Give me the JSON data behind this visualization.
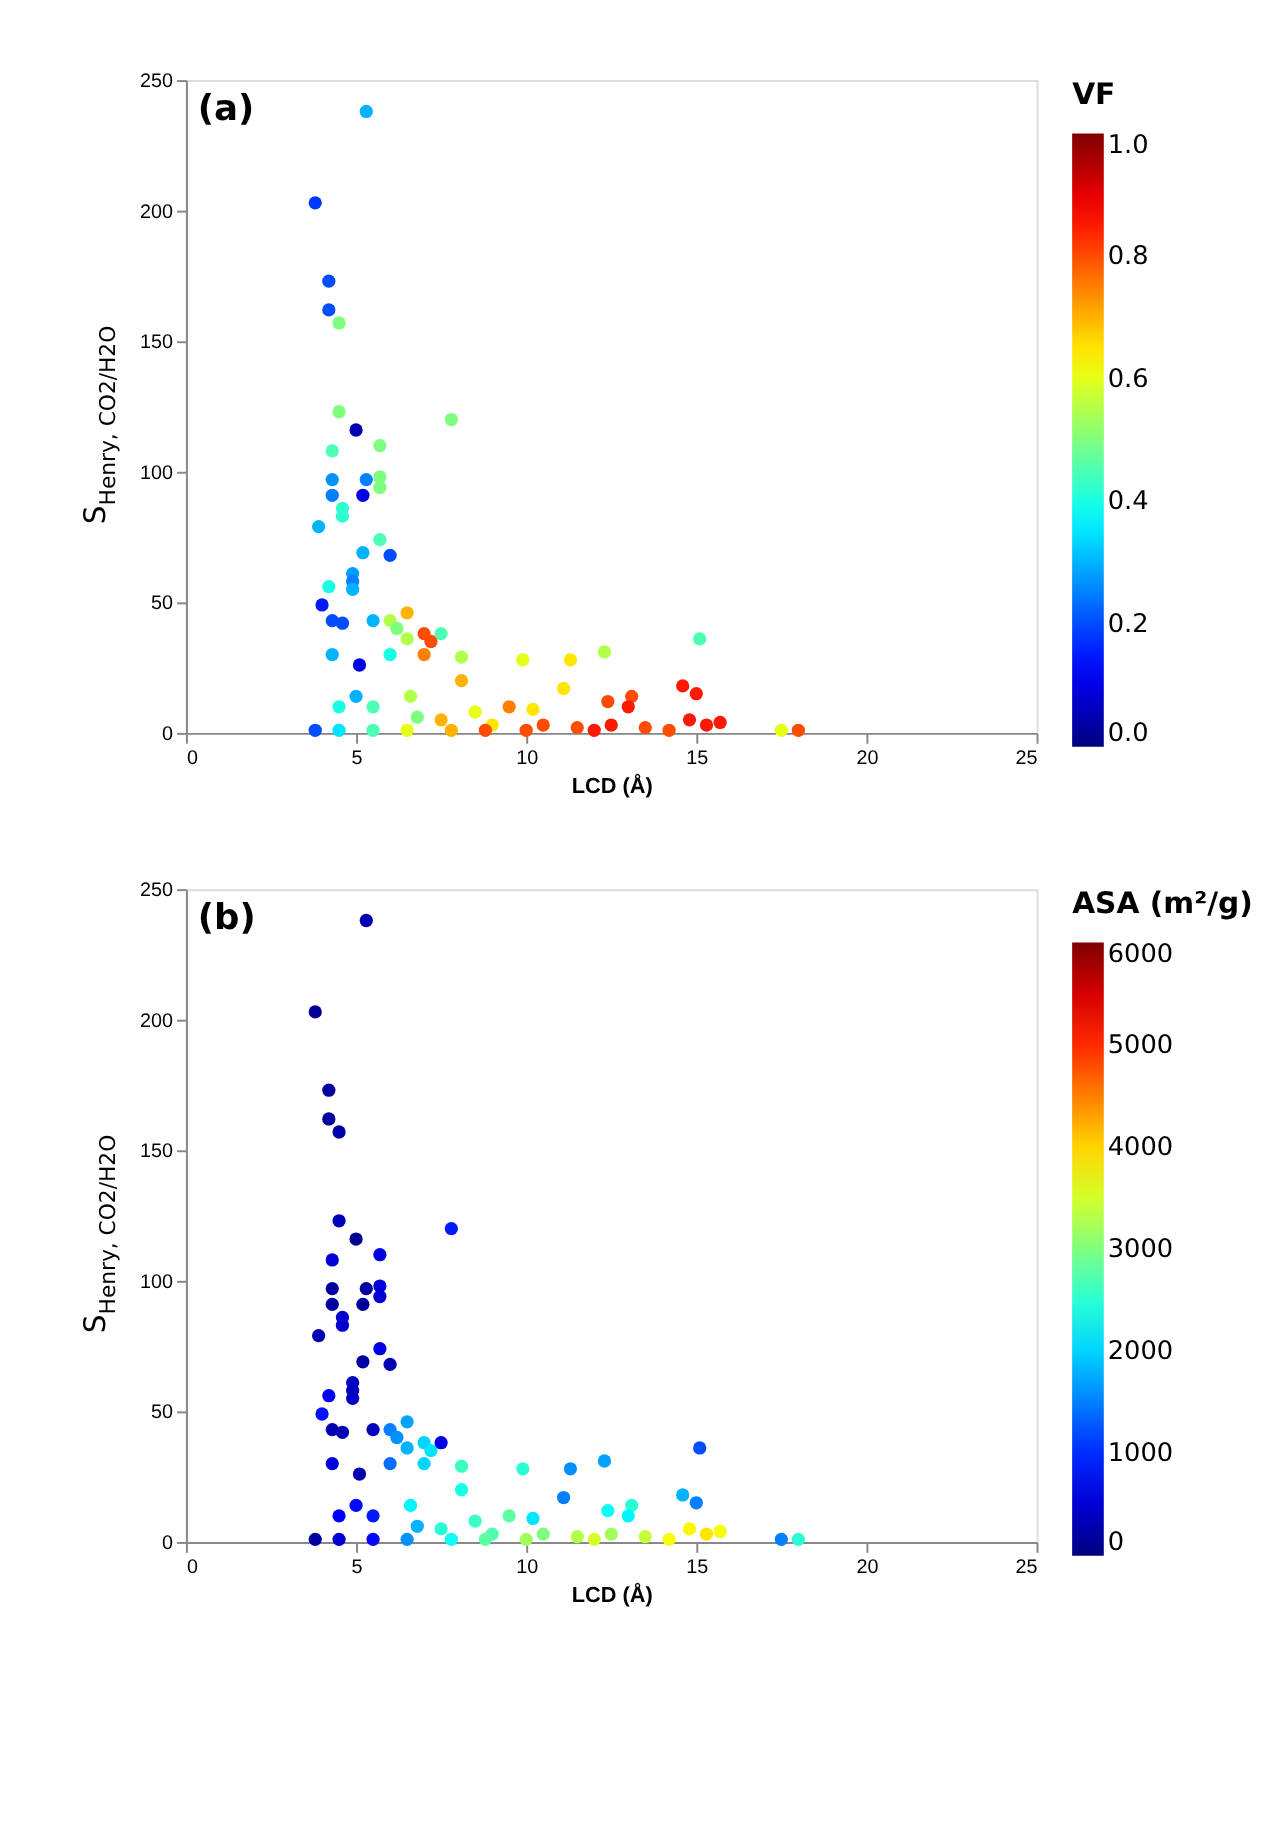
{
  "chart_data": [
    {
      "type": "scatter",
      "xlabel": "LCD (Å)",
      "ylabel": "S$_{Henry, CO2/H2O}$",
      "clabel": "VF",
      "annotations": [
        "(a)"
      ],
      "xlim": [
        0,
        25
      ],
      "xticks": [
        0,
        5,
        10,
        15,
        20,
        25
      ],
      "ylim": [
        0,
        250
      ],
      "yticks": [
        0,
        50,
        100,
        150,
        200,
        250
      ],
      "clim": [
        0,
        1
      ],
      "cticks": [
        {
          "value": 0,
          "label": "0.0"
        },
        {
          "value": 0.2,
          "label": "0.2"
        },
        {
          "value": 0.4,
          "label": "0.4"
        },
        {
          "value": 0.6,
          "label": "0.6"
        },
        {
          "value": 0.8,
          "label": "0.8"
        },
        {
          "value": 1,
          "label": "1.0"
        }
      ],
      "grid": false,
      "x": [
        5.3,
        3.8,
        4.2,
        4.2,
        4.5,
        4.5,
        5.0,
        7.8,
        4.3,
        5.7,
        4.3,
        5.3,
        5.7,
        5.7,
        5.2,
        4.3,
        4.6,
        4.6,
        5.7,
        3.9,
        5.2,
        6.0,
        4.9,
        4.9,
        4.2,
        4.0,
        4.9,
        4.3,
        4.6,
        5.5,
        6.0,
        6.5,
        6.2,
        6.5,
        7.0,
        7.2,
        7.5,
        7.0,
        6.0,
        4.3,
        5.1,
        8.1,
        8.1,
        9.9,
        11.3,
        12.3,
        15.1,
        14.6,
        15.0,
        13.1,
        13.0,
        12.4,
        11.1,
        9.5,
        10.2,
        8.5,
        6.6,
        5.0,
        4.5,
        5.5,
        6.8,
        7.5,
        9.0,
        10.5,
        11.5,
        12.5,
        13.5,
        14.8,
        15.3,
        15.7,
        3.8,
        4.5,
        5.5,
        6.5,
        7.8,
        8.8,
        10.0,
        12.0,
        14.2,
        17.5,
        18.0
      ],
      "values": [
        238,
        203,
        173,
        162,
        157,
        123,
        116,
        120,
        108,
        110,
        97,
        97,
        98,
        94,
        91,
        91,
        86,
        83,
        74,
        79,
        69,
        68,
        61,
        58,
        56,
        49,
        55,
        43,
        42,
        43,
        43,
        46,
        40,
        36,
        38,
        35,
        38,
        30,
        30,
        30,
        26,
        29,
        20,
        28,
        28,
        31,
        36,
        18,
        15,
        14,
        10,
        12,
        17,
        10,
        9,
        8,
        14,
        14,
        10,
        10,
        6,
        5,
        3,
        3,
        2,
        3,
        2,
        5,
        3,
        4,
        1,
        1,
        1,
        1,
        1,
        1,
        1,
        1,
        1,
        1,
        1
      ],
      "cvalues": [
        0.3,
        0.18,
        0.2,
        0.2,
        0.5,
        0.5,
        0.05,
        0.5,
        0.45,
        0.5,
        0.27,
        0.25,
        0.5,
        0.5,
        0.1,
        0.25,
        0.42,
        0.42,
        0.45,
        0.3,
        0.3,
        0.2,
        0.28,
        0.25,
        0.4,
        0.15,
        0.3,
        0.2,
        0.2,
        0.3,
        0.55,
        0.7,
        0.5,
        0.55,
        0.8,
        0.8,
        0.45,
        0.75,
        0.4,
        0.3,
        0.1,
        0.55,
        0.7,
        0.6,
        0.65,
        0.55,
        0.45,
        0.85,
        0.85,
        0.8,
        0.85,
        0.8,
        0.65,
        0.75,
        0.65,
        0.6,
        0.55,
        0.3,
        0.4,
        0.45,
        0.5,
        0.7,
        0.65,
        0.8,
        0.8,
        0.85,
        0.8,
        0.85,
        0.85,
        0.85,
        0.2,
        0.35,
        0.45,
        0.6,
        0.7,
        0.8,
        0.8,
        0.85,
        0.8,
        0.6,
        0.8
      ]
    },
    {
      "type": "scatter",
      "xlabel": "LCD (Å)",
      "ylabel": "S$_{Henry, CO2/H2O}$",
      "clabel": "ASA (m²/g)",
      "annotations": [
        "(b)"
      ],
      "xlim": [
        0,
        25
      ],
      "xticks": [
        0,
        5,
        10,
        15,
        20,
        25
      ],
      "ylim": [
        0,
        250
      ],
      "yticks": [
        0,
        50,
        100,
        150,
        200,
        250
      ],
      "clim": [
        0,
        6000
      ],
      "cticks": [
        0,
        1000,
        2000,
        3000,
        4000,
        5000,
        6000
      ],
      "grid": false,
      "x": [
        5.3,
        3.8,
        4.2,
        4.2,
        4.5,
        4.5,
        5.0,
        7.8,
        4.3,
        5.7,
        4.3,
        5.3,
        5.7,
        5.7,
        5.2,
        4.3,
        4.6,
        4.6,
        5.7,
        3.9,
        5.2,
        6.0,
        4.9,
        4.9,
        4.2,
        4.0,
        4.9,
        4.3,
        4.6,
        5.5,
        6.0,
        6.5,
        6.2,
        6.5,
        7.0,
        7.2,
        7.5,
        7.0,
        6.0,
        4.3,
        5.1,
        8.1,
        8.1,
        9.9,
        11.3,
        12.3,
        15.1,
        14.6,
        15.0,
        13.1,
        13.0,
        12.4,
        11.1,
        9.5,
        10.2,
        8.5,
        6.6,
        5.0,
        4.5,
        5.5,
        6.8,
        7.5,
        9.0,
        10.5,
        11.5,
        12.5,
        13.5,
        14.8,
        15.3,
        15.7,
        3.8,
        4.5,
        5.5,
        6.5,
        7.8,
        8.8,
        10.0,
        12.0,
        14.2,
        17.5,
        18.0
      ],
      "values": [
        238,
        203,
        173,
        162,
        157,
        123,
        116,
        120,
        108,
        110,
        97,
        97,
        98,
        94,
        91,
        91,
        86,
        83,
        74,
        79,
        69,
        68,
        61,
        58,
        56,
        49,
        55,
        43,
        42,
        43,
        43,
        46,
        40,
        36,
        38,
        35,
        38,
        30,
        30,
        30,
        26,
        29,
        20,
        28,
        28,
        31,
        36,
        18,
        15,
        14,
        10,
        12,
        17,
        10,
        9,
        8,
        14,
        14,
        10,
        10,
        6,
        5,
        3,
        3,
        2,
        3,
        2,
        5,
        3,
        4,
        1,
        1,
        1,
        1,
        1,
        1,
        1,
        1,
        1,
        1,
        1
      ],
      "cvalues": [
        300,
        150,
        200,
        200,
        250,
        350,
        100,
        900,
        500,
        600,
        200,
        200,
        550,
        500,
        150,
        200,
        450,
        450,
        600,
        300,
        200,
        300,
        400,
        400,
        700,
        850,
        400,
        300,
        300,
        350,
        1500,
        1700,
        1600,
        1800,
        2000,
        2100,
        600,
        2000,
        1400,
        500,
        300,
        2600,
        2400,
        2500,
        1600,
        1700,
        1200,
        1800,
        1500,
        2500,
        2200,
        2300,
        1500,
        2800,
        2100,
        2600,
        2200,
        800,
        700,
        900,
        1800,
        2500,
        2700,
        3000,
        3300,
        3200,
        3400,
        3800,
        3900,
        3700,
        200,
        500,
        800,
        1600,
        2300,
        2800,
        3200,
        3500,
        3700,
        1500,
        2500
      ]
    }
  ]
}
